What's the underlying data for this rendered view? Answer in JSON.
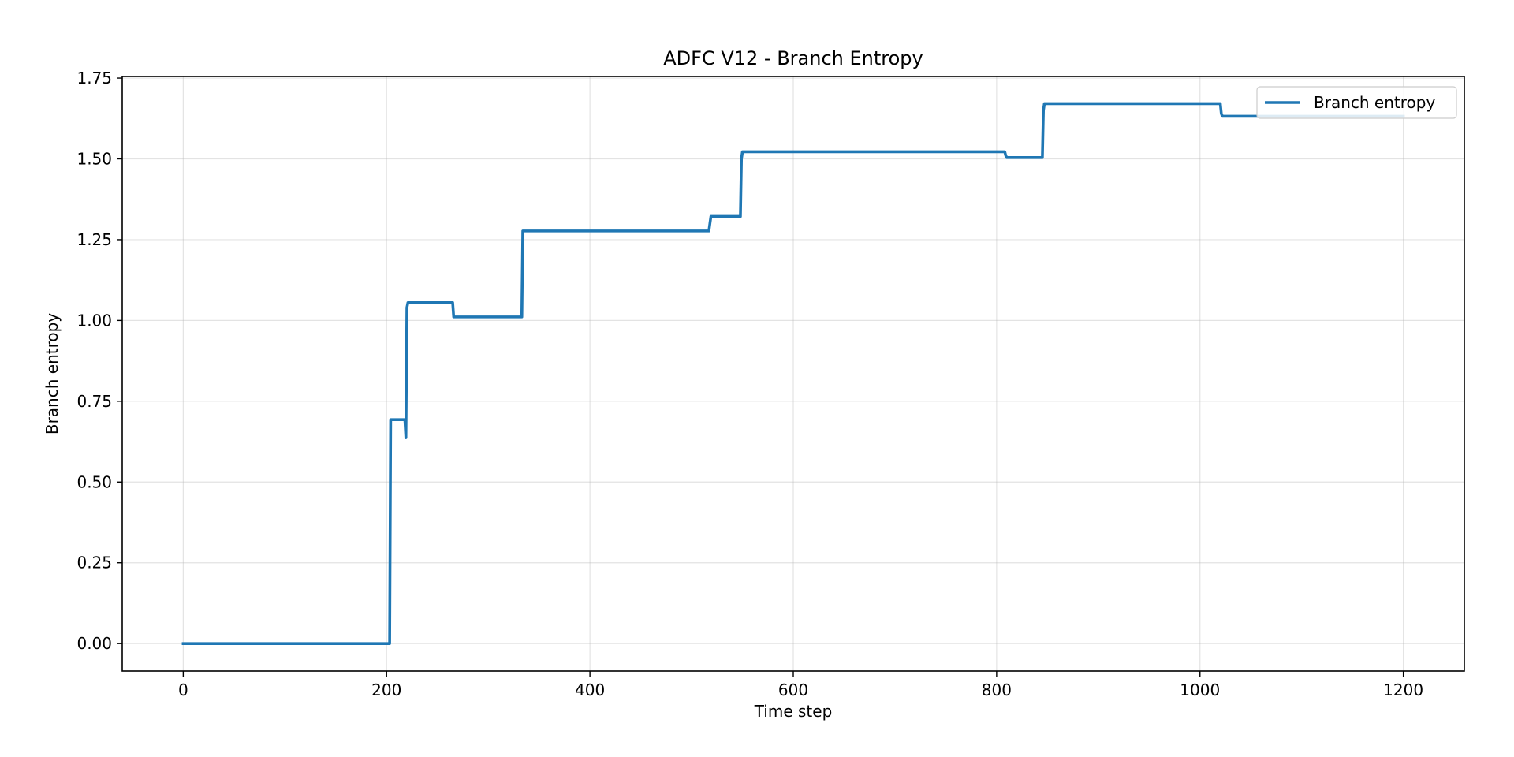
{
  "chart_data": {
    "type": "line",
    "title": "ADFC V12 - Branch Entropy",
    "xlabel": "Time step",
    "ylabel": "Branch entropy",
    "xlim": [
      -60,
      1260
    ],
    "ylim": [
      -0.085,
      1.755
    ],
    "xticks": [
      0,
      200,
      400,
      600,
      800,
      1000,
      1200
    ],
    "xtick_labels": [
      "0",
      "200",
      "400",
      "600",
      "800",
      "1000",
      "1200"
    ],
    "yticks": [
      0.0,
      0.25,
      0.5,
      0.75,
      1.0,
      1.25,
      1.5,
      1.75
    ],
    "ytick_labels": [
      "0.00",
      "0.25",
      "0.50",
      "0.75",
      "1.00",
      "1.25",
      "1.50",
      "1.75"
    ],
    "grid": true,
    "legend_position": "top-right",
    "series": [
      {
        "name": "Branch entropy",
        "color": "#1f77b4",
        "x": [
          0,
          203,
          204,
          218,
          219,
          220,
          221,
          265,
          266,
          333,
          334,
          517,
          518,
          519,
          548,
          549,
          550,
          808,
          809,
          810,
          845,
          846,
          847,
          1020,
          1021,
          1022,
          1200
        ],
        "y": [
          0.0,
          0.0,
          0.693,
          0.693,
          0.637,
          1.04,
          1.055,
          1.055,
          1.011,
          1.011,
          1.277,
          1.277,
          1.3,
          1.322,
          1.322,
          1.5,
          1.522,
          1.522,
          1.51,
          1.504,
          1.504,
          1.65,
          1.671,
          1.671,
          1.64,
          1.632,
          1.632
        ]
      }
    ]
  }
}
